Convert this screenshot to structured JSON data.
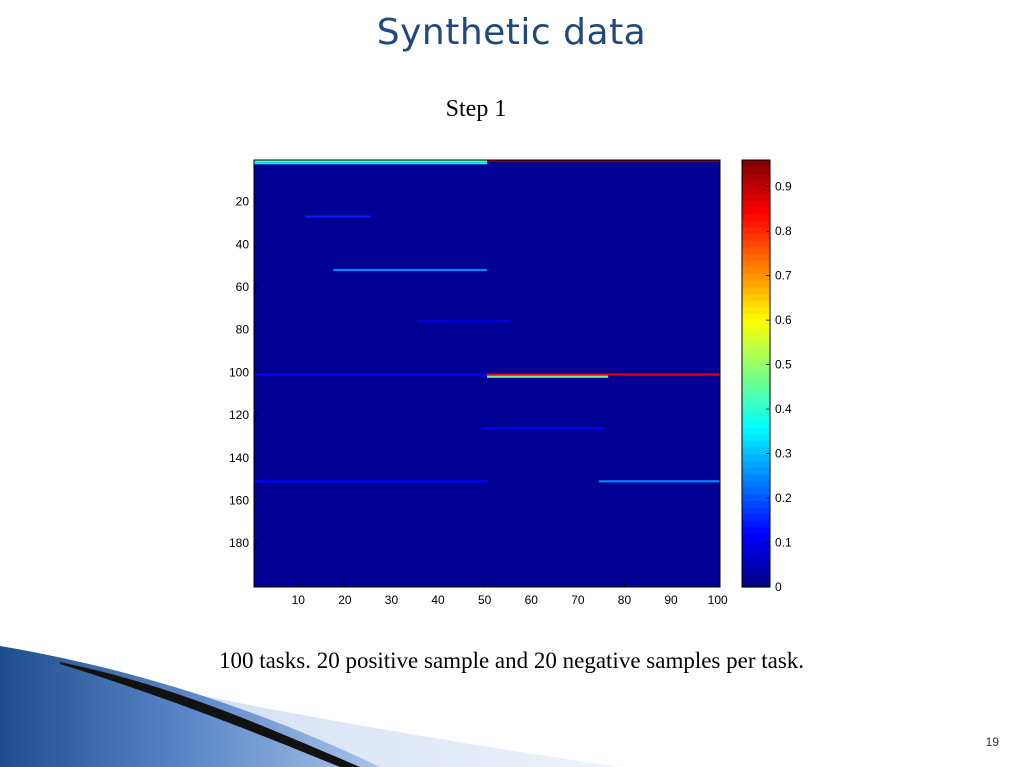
{
  "slide": {
    "title": "Synthetic data",
    "caption": "100 tasks. 20 positive sample and 20 negative samples per task.",
    "page_number": "19"
  },
  "chart_data": {
    "type": "heatmap",
    "title": "Step 1",
    "xlabel": "",
    "ylabel": "",
    "x_range": [
      1,
      100
    ],
    "y_range": [
      1,
      200
    ],
    "y_reversed": true,
    "x_ticks": [
      10,
      20,
      30,
      40,
      50,
      60,
      70,
      80,
      90,
      100
    ],
    "y_ticks": [
      20,
      40,
      60,
      80,
      100,
      120,
      140,
      160,
      180
    ],
    "colormap": "jet",
    "colorbar": {
      "range": [
        0,
        0.96
      ],
      "ticks": [
        0,
        0.1,
        0.2,
        0.3,
        0.4,
        0.5,
        0.6,
        0.7,
        0.8,
        0.9
      ]
    },
    "background_value": 0.02,
    "highlight_bands": [
      {
        "row": 1,
        "x_from": 1,
        "x_to": 50,
        "value": 0.45,
        "note": "bright band, tasks 1-50"
      },
      {
        "row": 1,
        "x_from": 51,
        "x_to": 100,
        "value": 0.95
      },
      {
        "row": 2,
        "x_from": 1,
        "x_to": 50,
        "value": 0.35
      },
      {
        "row": 101,
        "x_from": 51,
        "x_to": 100,
        "value": 0.85
      },
      {
        "row": 102,
        "x_from": 51,
        "x_to": 76,
        "value": 0.45
      },
      {
        "row": 101,
        "x_from": 1,
        "x_to": 50,
        "value": 0.12
      },
      {
        "row": 52,
        "x_from": 18,
        "x_to": 50,
        "value": 0.25
      },
      {
        "row": 151,
        "x_from": 75,
        "x_to": 100,
        "value": 0.25
      },
      {
        "row": 151,
        "x_from": 1,
        "x_to": 50,
        "value": 0.12
      },
      {
        "row": 27,
        "x_from": 12,
        "x_to": 25,
        "value": 0.15
      },
      {
        "row": 76,
        "x_from": 36,
        "x_to": 55,
        "value": 0.1
      },
      {
        "row": 126,
        "x_from": 50,
        "x_to": 75,
        "value": 0.12
      }
    ]
  }
}
